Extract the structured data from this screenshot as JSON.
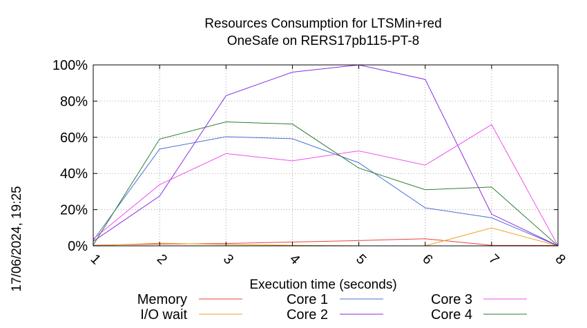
{
  "chart_data": {
    "type": "line",
    "title": "Resources Consumption for LTSMin+red",
    "subtitle": "OneSafe on RERS17pb115-PT-8",
    "xlabel": "Execution time (seconds)",
    "ylabel": "",
    "x": [
      1,
      2,
      3,
      4,
      5,
      6,
      7,
      8
    ],
    "x_ticks": [
      "1",
      "2",
      "3",
      "4",
      "5",
      "6",
      "7",
      "8"
    ],
    "y_ticks": [
      "0%",
      "20%",
      "40%",
      "60%",
      "80%",
      "100%"
    ],
    "y_tick_values": [
      0,
      20,
      40,
      60,
      80,
      100
    ],
    "xlim": [
      1,
      8
    ],
    "ylim": [
      0,
      100
    ],
    "grid": true,
    "legend_position": "bottom",
    "series": [
      {
        "name": "Memory",
        "color": "#e8403a",
        "values": [
          0.3,
          1.0,
          1.3,
          2.1,
          2.9,
          3.9,
          0.3,
          0.2
        ]
      },
      {
        "name": "I/O wait",
        "color": "#f0a020",
        "values": [
          0.0,
          1.5,
          0.7,
          0.3,
          0.0,
          0.0,
          9.9,
          0.0
        ]
      },
      {
        "name": "Core 1",
        "color": "#4a6fd6",
        "values": [
          3.0,
          53.5,
          60.3,
          59.2,
          45.9,
          21.0,
          15.5,
          0.0
        ]
      },
      {
        "name": "Core 2",
        "color": "#8a2be2",
        "values": [
          2.5,
          27.5,
          83.0,
          96.0,
          100.0,
          92.0,
          17.5,
          0.0
        ]
      },
      {
        "name": "Core 3",
        "color": "#ee4fee",
        "values": [
          3.8,
          33.8,
          51.0,
          47.0,
          52.5,
          44.6,
          67.0,
          0.0
        ]
      },
      {
        "name": "Core 4",
        "color": "#2e7d32",
        "values": [
          0.5,
          59.0,
          68.5,
          67.3,
          43.0,
          31.0,
          32.5,
          0.0
        ]
      }
    ]
  },
  "timestamp": "17/06/2024, 19:25"
}
